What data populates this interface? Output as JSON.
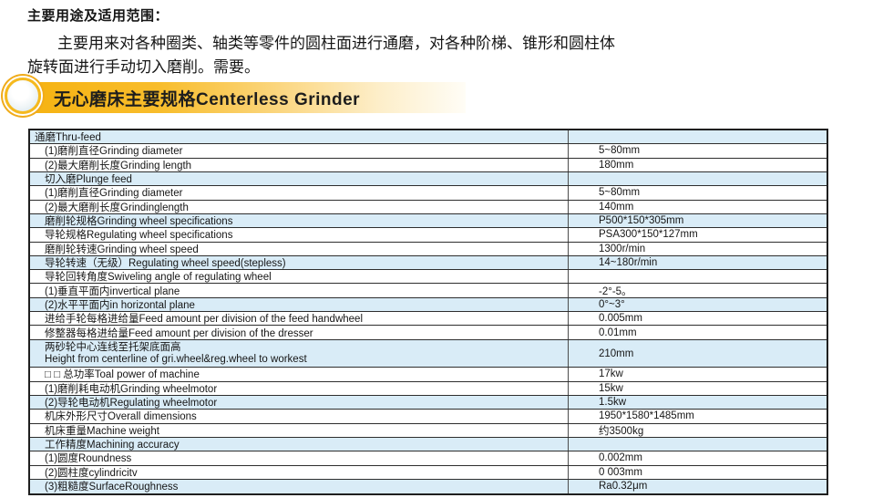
{
  "colors": {
    "banner_gold": "#f6b312",
    "banner_fade": "#fffdf6",
    "row_highlight": "#d9ecf7",
    "table_border": "#1f1f1f",
    "text": "#161616"
  },
  "intro": {
    "title": "主要用途及适用范围：",
    "line1": "主要用来对各种圈类、轴类等零件的圆柱面进行通磨，对各种阶梯、锥形和圆柱体",
    "line2": "旋转面进行手动切入磨削。需要。"
  },
  "banner": {
    "title": "无心磨床主要规格Centerless Grinder"
  },
  "table": {
    "rows": [
      {
        "label": "通磨Thru-feed",
        "value": "",
        "highlight": true,
        "flush": true
      },
      {
        "label": "(1)磨削直径Grinding diameter",
        "value": "5~80mm"
      },
      {
        "label": "(2)最大磨削长度Grinding length",
        "value": "180mm"
      },
      {
        "label": "切入磨Plunge feed",
        "value": "",
        "highlight": true
      },
      {
        "label": "(1)磨削直径Grinding diameter",
        "value": "5~80mm"
      },
      {
        "label": "(2)最大磨削长度Grindinglength",
        "value": "140mm"
      },
      {
        "label": "磨削轮规格Grinding wheel specifications",
        "value": "P500*150*305mm",
        "highlight": true
      },
      {
        "label": "导轮规格Regulating wheel specifications",
        "value": "PSA300*150*127mm"
      },
      {
        "label": "磨削轮转速Grinding wheel speed",
        "value": "1300r/min"
      },
      {
        "label": "导轮转速（无级）Regulating wheel speed(stepless)",
        "value": "14~180r/min",
        "highlight": true
      },
      {
        "label": "导轮回转角度Swiveling angle of regulating wheel",
        "value": ""
      },
      {
        "label": "(1)垂直平面内invertical plane",
        "value": "-2°-5。"
      },
      {
        "label": "(2)水平平面内in horizontal plane",
        "value": "0°~3°",
        "highlight": true
      },
      {
        "label": "进给手轮每格进给量Feed amount per division of the feed handwheel",
        "value": "0.005mm"
      },
      {
        "label": "修整器每格进给量Feed amount per division of the dresser",
        "value": "0.01mm"
      },
      {
        "label": "两砂轮中心连线至托架底面高",
        "label2": "Height from centerline of gri.wheel&reg.wheel to workest",
        "value": "210mm",
        "highlight": true,
        "tall": true
      },
      {
        "label": "□ □ 总功率Toal power of machine",
        "value": "17kw"
      },
      {
        "label": "(1)磨削耗电动机Grinding wheelmotor",
        "value": "15kw"
      },
      {
        "label": "(2)导轮电动机Regulating wheelmotor",
        "value": "1.5kw",
        "highlight": true
      },
      {
        "label": "机床外形尺寸Overall dimensions",
        "value": "1950*1580*1485mm"
      },
      {
        "label": "机床重量Machine weight",
        "value": "约3500kg"
      },
      {
        "label": "工作精度Machining accuracy",
        "value": "",
        "highlight": true
      },
      {
        "label": "(1)圆度Roundness",
        "value": "0.002mm"
      },
      {
        "label": "(2)圆柱度cylindricitv",
        "value": "0 003mm"
      },
      {
        "label": "(3)粗糙度SurfaceRoughness",
        "value": "Ra0.32μm",
        "highlight": true
      }
    ]
  }
}
